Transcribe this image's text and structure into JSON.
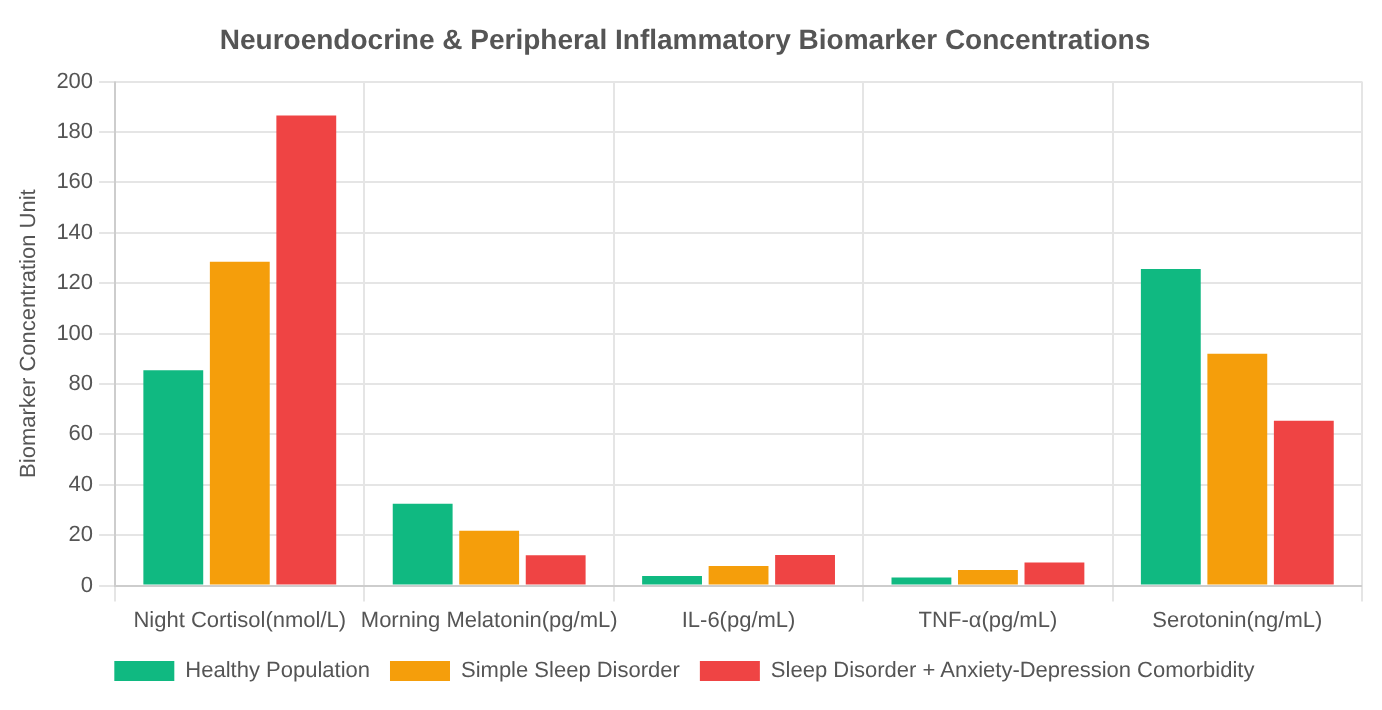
{
  "chart_data": {
    "type": "bar",
    "title": "Neuroendocrine & Peripheral Inflammatory Biomarker Concentrations",
    "ylabel": "Biomarker Concentration Unit",
    "categories": [
      "Night Cortisol(nmol/L)",
      "Morning Melatonin(pg/mL)",
      "IL-6(pg/mL)",
      "TNF-α(pg/mL)",
      "Serotonin(ng/mL)"
    ],
    "series": [
      {
        "name": "Healthy Population",
        "color": "#10b981",
        "values": [
          85.5,
          32.5,
          3.8,
          3.2,
          125.6
        ]
      },
      {
        "name": "Simple Sleep Disorder",
        "color": "#f59e0b",
        "values": [
          128.5,
          21.8,
          7.8,
          6.2,
          92
        ]
      },
      {
        "name": "Sleep Disorder + Anxiety-Depression Comorbidity",
        "color": "#ef4444",
        "values": [
          186.5,
          12,
          12.1,
          9.2,
          65.4
        ]
      }
    ],
    "ylim": [
      0,
      200
    ],
    "yticks": [
      0,
      20,
      40,
      60,
      80,
      100,
      120,
      140,
      160,
      180,
      200
    ],
    "grid": true,
    "legend": "bottom"
  }
}
